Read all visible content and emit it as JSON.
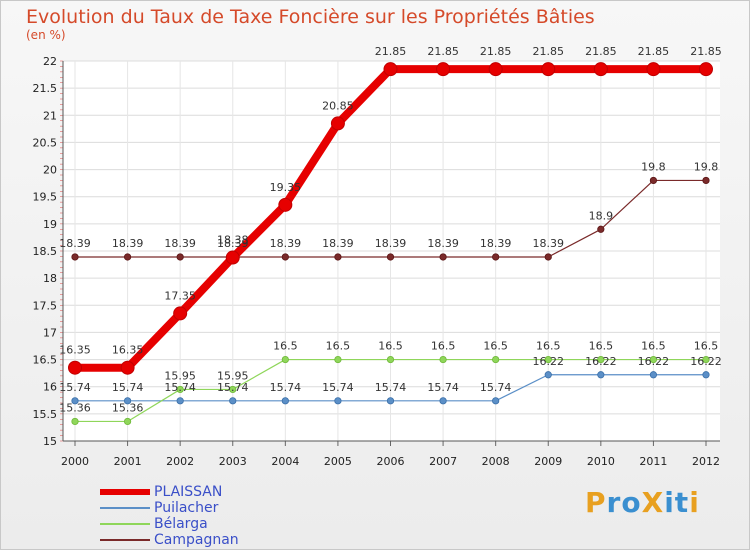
{
  "chart_data": {
    "type": "line",
    "title": "Evolution du Taux de Taxe Foncière sur les Propriétés Bâties",
    "ylabel": "(en %)",
    "xlabel": "",
    "ylim": [
      15,
      22
    ],
    "yticks": [
      "15",
      "15.5",
      "16",
      "16.5",
      "17",
      "17.5",
      "18",
      "18.5",
      "19",
      "19.5",
      "20",
      "20.5",
      "21",
      "21.5",
      "22"
    ],
    "categories": [
      "2000",
      "2001",
      "2002",
      "2003",
      "2004",
      "2005",
      "2006",
      "2007",
      "2008",
      "2009",
      "2010",
      "2011",
      "2012"
    ],
    "series": [
      {
        "name": "PLAISSAN",
        "color": "#e60000",
        "values": [
          16.35,
          16.35,
          17.35,
          18.38,
          19.35,
          20.85,
          21.85,
          21.85,
          21.85,
          21.85,
          21.85,
          21.85,
          21.85
        ]
      },
      {
        "name": "Puilacher",
        "color": "#5b8fc7",
        "values": [
          15.74,
          15.74,
          15.74,
          15.74,
          15.74,
          15.74,
          15.74,
          15.74,
          15.74,
          16.22,
          16.22,
          16.22,
          16.22
        ]
      },
      {
        "name": "Bélarga",
        "color": "#8fd65a",
        "values": [
          15.36,
          15.36,
          15.95,
          15.95,
          16.5,
          16.5,
          16.5,
          16.5,
          16.5,
          16.5,
          16.5,
          16.5,
          16.5
        ]
      },
      {
        "name": "Campagnan",
        "color": "#7a2a2a",
        "values": [
          18.39,
          18.39,
          18.39,
          18.39,
          18.39,
          18.39,
          18.39,
          18.39,
          18.39,
          18.39,
          18.9,
          19.8,
          19.8
        ]
      }
    ],
    "data_labels": {
      "PLAISSAN": [
        "16.35",
        "16.35",
        "17.35",
        "18.38",
        "19.35",
        "20.85",
        "21.85",
        "21.85",
        "21.85",
        "21.85",
        "21.85",
        "21.85",
        "21.85"
      ],
      "Puilacher": [
        "15.74",
        "15.74",
        "15.74",
        "15.74",
        "15.74",
        "15.74",
        "15.74",
        "15.74",
        "15.74",
        "16.22",
        "16.22",
        "16.22",
        "16.22"
      ],
      "Bélarga": [
        "15.36",
        "15.36",
        "15.95",
        "15.95",
        "16.5",
        "16.5",
        "16.5",
        "16.5",
        "16.5",
        "16.5",
        "16.5",
        "16.5",
        "16.5"
      ],
      "Campagnan": [
        "18.39",
        "18.39",
        "18.39",
        "18.39",
        "18.39",
        "18.39",
        "18.39",
        "18.39",
        "18.39",
        "18.39",
        "18.9",
        "19.8",
        "19.8"
      ]
    },
    "legend": "bottom-left"
  },
  "logo": {
    "text": "ProXiti",
    "colors": [
      "#e8a020",
      "#3a8fd0",
      "#3a8fd0",
      "#e8a020",
      "#3a8fd0",
      "#3a8fd0",
      "#e8a020"
    ]
  }
}
